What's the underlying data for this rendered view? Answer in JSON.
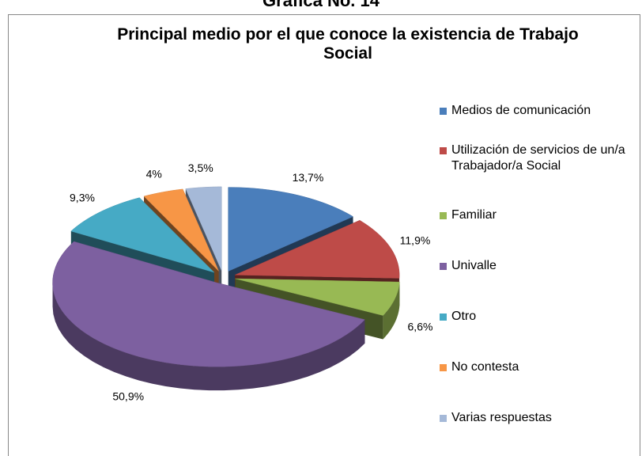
{
  "header": "Gráfica No. 14",
  "chart_data": {
    "type": "pie3d",
    "title": "Principal medio por el que conoce la existencia de Trabajo Social",
    "categories": [
      "Medios de comunicación",
      "Utilización de servicios de un/a Trabajador/a Social",
      "Familiar",
      "Univalle",
      "Otro",
      "No contesta",
      "Varias respuestas"
    ],
    "values": [
      13.7,
      11.9,
      6.6,
      50.9,
      9.3,
      4,
      3.5
    ],
    "value_labels": [
      "13,7%",
      "11,9%",
      "6,6%",
      "50,9%",
      "9,3%",
      "4%",
      "3,5%"
    ],
    "colors": [
      "#4a7ebb",
      "#be4b48",
      "#98b954",
      "#7d60a0",
      "#46aac5",
      "#f79646",
      "#a5b9d8"
    ],
    "legend": "right"
  }
}
